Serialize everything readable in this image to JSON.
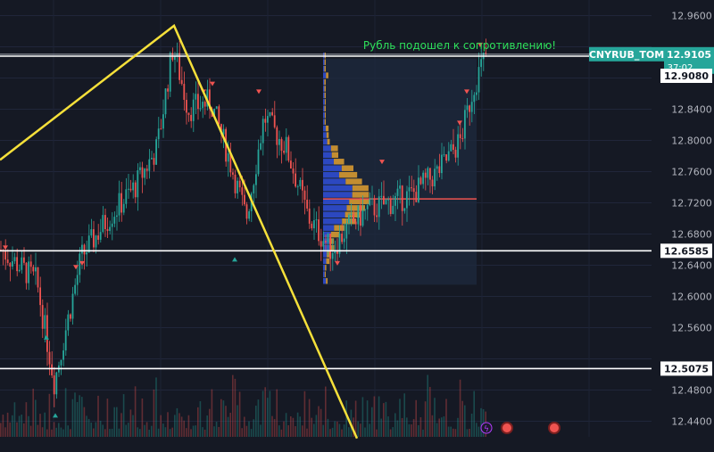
{
  "annotation": "Рубль подошел к сопротивлению!",
  "chart_data": {
    "type": "candlestick",
    "symbol": "CNYRUB_TOM",
    "last_price": 12.9105,
    "countdown": "37:02",
    "ylim": [
      12.42,
      12.98
    ],
    "yticks": [
      12.96,
      12.92,
      12.88,
      12.84,
      12.8,
      12.76,
      12.72,
      12.68,
      12.64,
      12.6,
      12.56,
      12.52,
      12.48,
      12.44
    ],
    "ytick_labels": [
      "12.9600",
      "12.9200",
      "12.8800",
      "12.8400",
      "12.8000",
      "12.7600",
      "12.7200",
      "12.6800",
      "12.6400",
      "12.6000",
      "12.5600",
      "12.5200",
      "12.4800",
      "12.4400"
    ],
    "horizontal_levels": [
      {
        "value": 12.9105,
        "label": "12.9105",
        "style": "last-price"
      },
      {
        "value": 12.908,
        "label": "12.9080",
        "style": "white"
      },
      {
        "value": 12.6585,
        "label": "12.6585",
        "style": "white"
      },
      {
        "value": 12.5075,
        "label": "12.5075",
        "style": "white"
      }
    ],
    "point_of_control": 12.725,
    "volume_profile_range": [
      12.615,
      12.905
    ],
    "colors": {
      "up": "#26a69a",
      "down": "#ef5350",
      "trendline": "#f5e03a",
      "annotation": "#2ee05a",
      "profile_up": "#2f4fd8",
      "profile_down": "#e0a030",
      "profile_bg": "#1e2a3d",
      "last_price_bg": "#26a69a"
    }
  }
}
